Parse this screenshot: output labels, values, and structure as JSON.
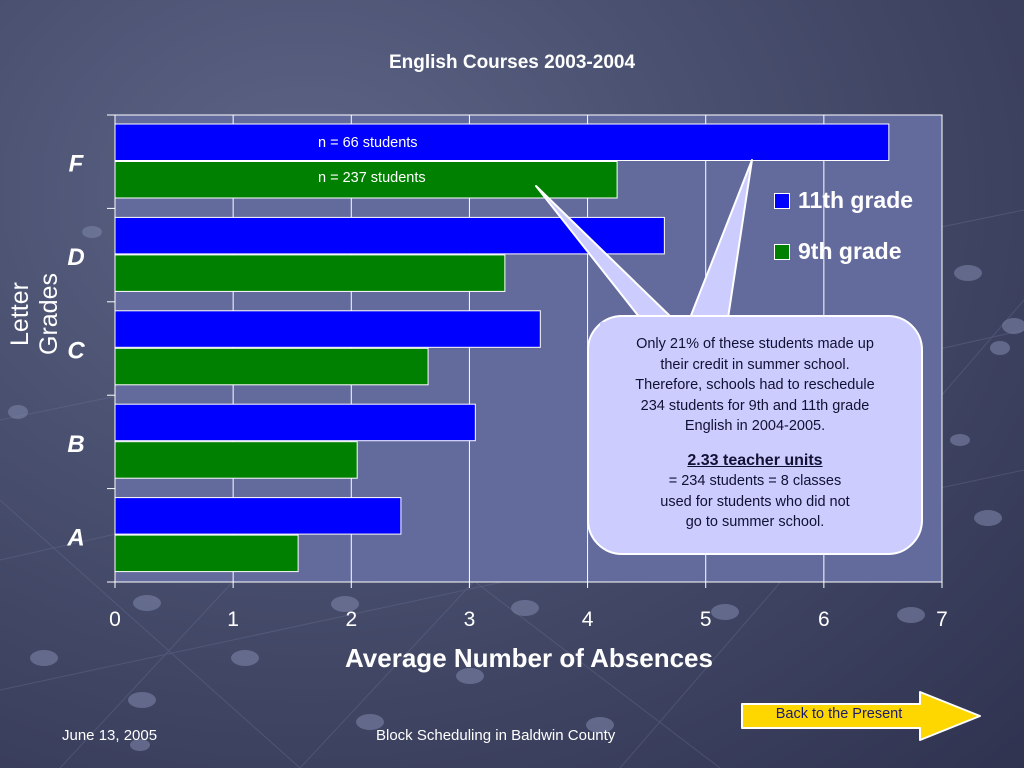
{
  "chart_data": {
    "type": "bar",
    "orientation": "horizontal",
    "title": "English Courses 2003-2004",
    "xlabel": "Average Number of Absences",
    "ylabel": "Letter Grades",
    "categories": [
      "F",
      "D",
      "C",
      "B",
      "A"
    ],
    "series": [
      {
        "name": "11th grade",
        "color": "#0000ff",
        "values": [
          6.55,
          4.65,
          3.6,
          3.05,
          2.42
        ]
      },
      {
        "name": "9th grade",
        "color": "#008000",
        "values": [
          4.25,
          3.3,
          2.65,
          2.05,
          1.55
        ]
      }
    ],
    "xlim": [
      0,
      7
    ],
    "xticks": [
      "0",
      "1",
      "2",
      "3",
      "4",
      "5",
      "6",
      "7"
    ],
    "grid": true,
    "legend_position": "right",
    "annotations": {
      "n_11th": "n = 66 students",
      "n_9th": "n = 237 students"
    },
    "plot_background": "#636a9c"
  },
  "callout": {
    "line1": "Only 21% of these students made up",
    "line2": "their credit in summer school.",
    "line3": "Therefore, schools had to reschedule",
    "line4": "234 students for 9th and 11th grade",
    "line5": "English in 2004-2005.",
    "units": "2.33 teacher units",
    "line6": "= 234 students = 8 classes",
    "line7": "used for students who did not",
    "line8": "go to summer school."
  },
  "nav": {
    "back_label": "Back to the Present",
    "color": "#ffd700"
  },
  "footer": {
    "date": "June 13, 2005",
    "title": "Block Scheduling in Baldwin County"
  }
}
